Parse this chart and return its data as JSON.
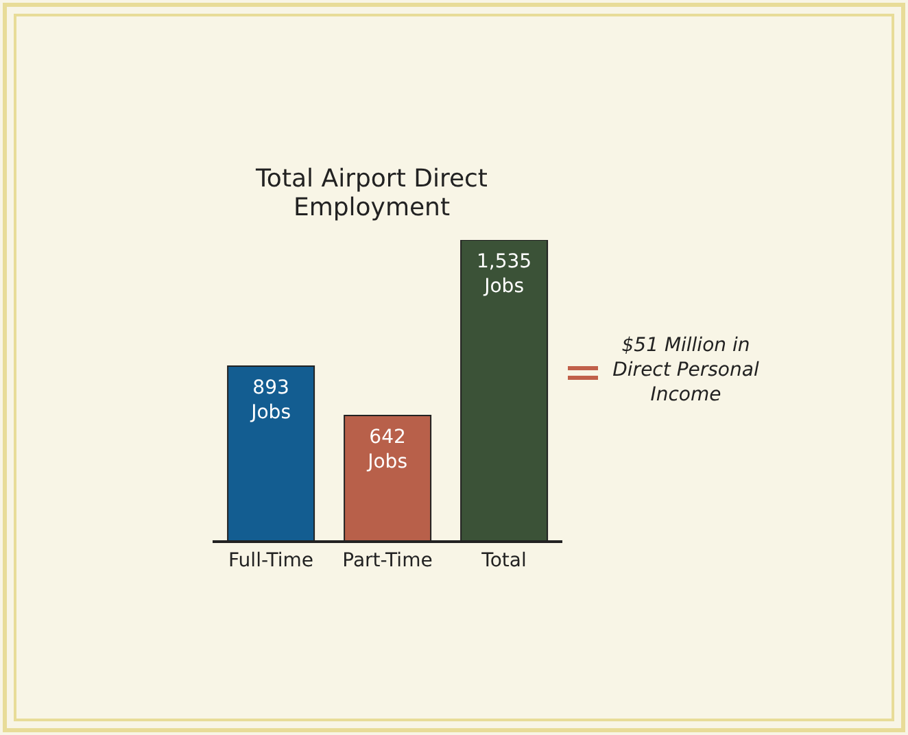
{
  "chart_data": {
    "type": "bar",
    "title": "Total Airport Direct Employment",
    "categories": [
      "Full-Time",
      "Part-Time",
      "Total"
    ],
    "values": [
      893,
      642,
      1535
    ],
    "colors": [
      "#135d91",
      "#b8604a",
      "#3b5237"
    ],
    "value_labels": [
      "893 Jobs",
      "642 Jobs",
      "1,535 Jobs"
    ],
    "annotations": [
      "$51 Million in Direct Personal Income"
    ],
    "legend": false,
    "grid": false
  }
}
